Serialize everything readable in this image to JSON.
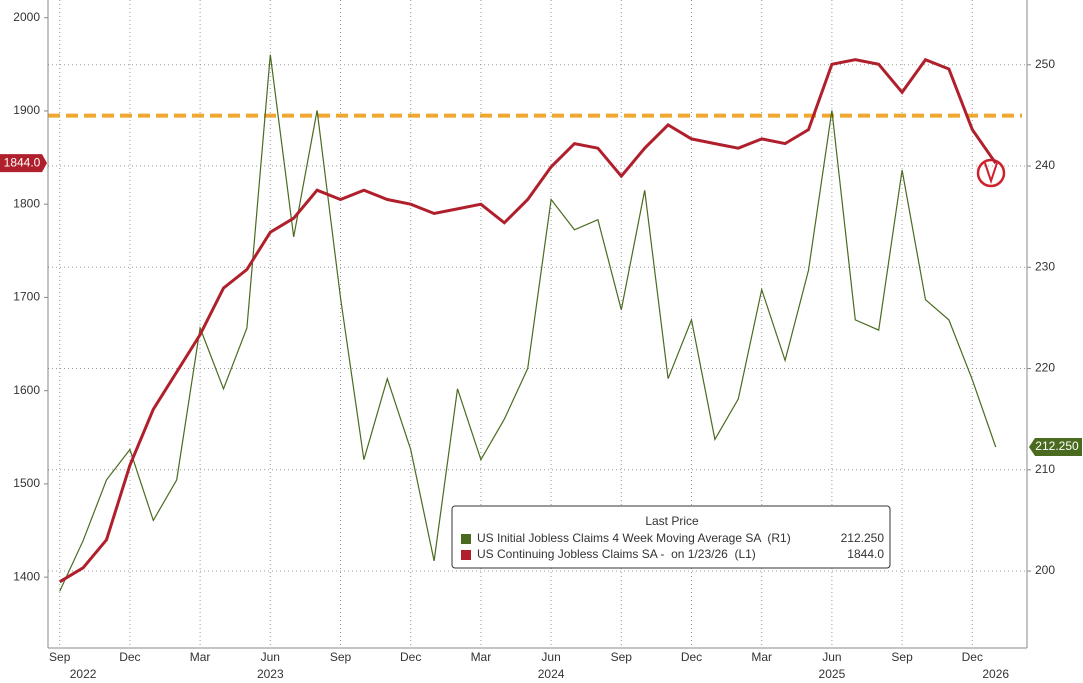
{
  "chart_data": {
    "type": "line",
    "categories": [
      "Sep",
      null,
      null,
      "Dec",
      null,
      null,
      "Mar",
      null,
      null,
      "Jun",
      null,
      null,
      "Sep",
      null,
      null,
      "Dec",
      null,
      null,
      "Mar",
      null,
      null,
      "Jun",
      null,
      null,
      "Sep",
      null,
      null,
      "Dec",
      null,
      null,
      "Mar",
      null,
      null,
      "Jun",
      null,
      null,
      "Sep",
      null,
      null,
      "Dec",
      null
    ],
    "years": [
      null,
      "2022",
      null,
      null,
      null,
      null,
      null,
      null,
      null,
      "2023",
      null,
      null,
      null,
      null,
      null,
      null,
      null,
      null,
      null,
      null,
      null,
      "2024",
      null,
      null,
      null,
      null,
      null,
      null,
      null,
      null,
      null,
      null,
      null,
      "2025",
      null,
      null,
      null,
      null,
      null,
      null,
      "2026"
    ],
    "series": [
      {
        "name": "US Initial Jobless Claims 4 Week Moving Average SA  (R1)",
        "color": "#4a6b1f",
        "axis": "y2",
        "last_label": "212.250",
        "values": [
          198,
          203,
          209,
          212,
          205,
          209,
          224,
          218,
          224,
          251,
          233,
          245.5,
          227,
          211,
          219,
          212,
          201,
          218,
          211,
          215,
          220,
          236.7,
          233.7,
          234.7,
          225.8,
          237.6,
          219,
          224.8,
          213,
          217,
          227.8,
          220.8,
          229.7,
          245.5,
          224.8,
          223.8,
          239.6,
          226.8,
          224.8,
          218.9,
          212.25
        ]
      },
      {
        "name": "US Continuing Jobless Claims SA -  on 1/23/26  (L1)",
        "color": "#b0202c",
        "axis": "y",
        "last_label": "1844.0",
        "values": [
          1395,
          1410,
          1440,
          1520,
          1580,
          1620,
          1660,
          1710,
          1730,
          1770,
          1785,
          1815,
          1805,
          1815,
          1805,
          1800,
          1790,
          1795,
          1800,
          1780,
          1805,
          1840,
          1865,
          1860,
          1830,
          1860,
          1885,
          1870,
          1865,
          1860,
          1870,
          1865,
          1880,
          1950,
          1955,
          1950,
          1920,
          1955,
          1945,
          1880,
          1844
        ]
      }
    ],
    "ylim": [
      1324,
      2019
    ],
    "yticks": [
      1400,
      1500,
      1600,
      1700,
      1800,
      1900,
      2000
    ],
    "y2lim": [
      192.4,
      256.4
    ],
    "y2ticks": [
      200,
      210,
      220,
      230,
      240,
      250
    ],
    "reference_line": {
      "value": 1895,
      "color": "#f0a830"
    },
    "legend_title": "Last Price",
    "grid": true
  }
}
